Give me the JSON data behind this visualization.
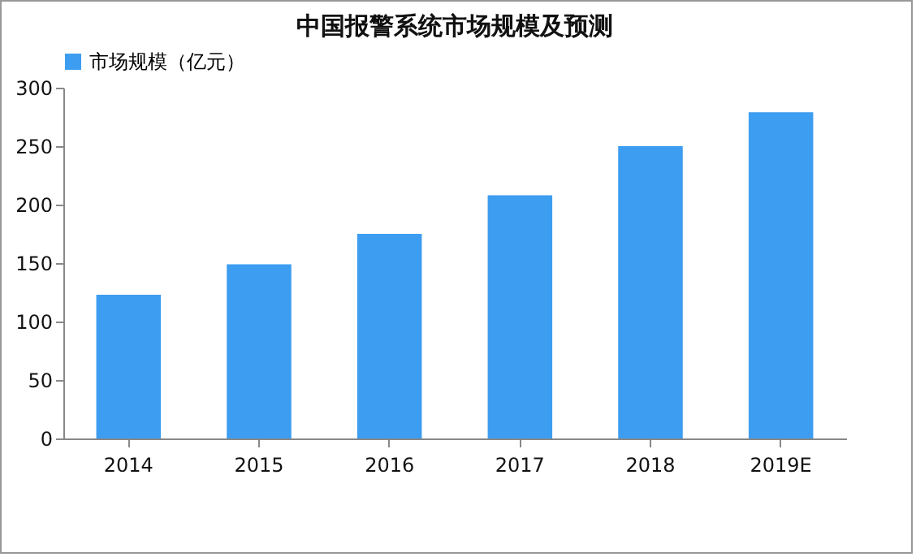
{
  "chart_data": {
    "type": "bar",
    "title": "中国报警系统市场规模及预测",
    "categories": [
      "2014",
      "2015",
      "2016",
      "2017",
      "2018",
      "2019E"
    ],
    "series": [
      {
        "name": "市场规模（亿元）",
        "color": "#3d9df0",
        "values": [
          123,
          149,
          175,
          208,
          250,
          279
        ]
      }
    ],
    "ylim": [
      0,
      300
    ],
    "yticks": [
      0,
      50,
      100,
      150,
      200,
      250,
      300
    ],
    "grid": false,
    "legend": "top"
  }
}
